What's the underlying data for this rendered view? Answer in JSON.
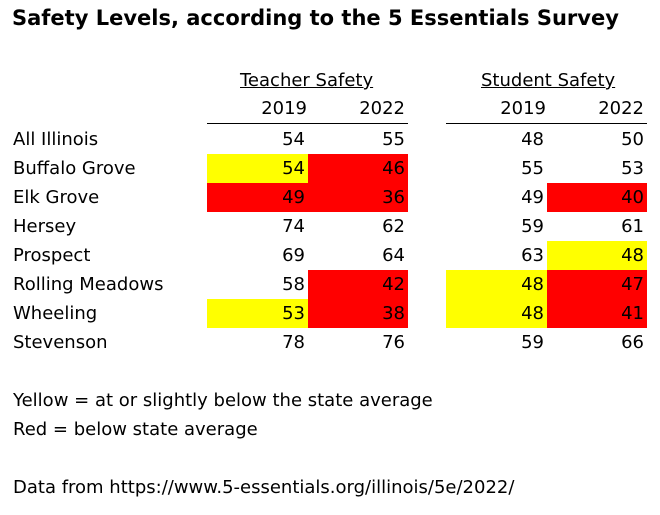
{
  "chart_data": {
    "type": "table",
    "title": "Safety Levels, according to the 5 Essentials Survey",
    "groups": [
      {
        "name": "Teacher Safety",
        "years": [
          "2019",
          "2022"
        ]
      },
      {
        "name": "Student Safety",
        "years": [
          "2019",
          "2022"
        ]
      }
    ],
    "colors": {
      "yellow": "#FFFF00",
      "red": "#FF0000"
    },
    "rows": [
      {
        "label": "All Illinois",
        "teacher": [
          54,
          55
        ],
        "student": [
          48,
          50
        ],
        "teacher_hl": [
          "",
          ""
        ],
        "student_hl": [
          "",
          ""
        ]
      },
      {
        "label": "Buffalo Grove",
        "teacher": [
          54,
          46
        ],
        "student": [
          55,
          53
        ],
        "teacher_hl": [
          "yellow",
          "red"
        ],
        "student_hl": [
          "",
          ""
        ]
      },
      {
        "label": "Elk Grove",
        "teacher": [
          49,
          36
        ],
        "student": [
          49,
          40
        ],
        "teacher_hl": [
          "red",
          "red"
        ],
        "student_hl": [
          "",
          "red"
        ]
      },
      {
        "label": "Hersey",
        "teacher": [
          74,
          62
        ],
        "student": [
          59,
          61
        ],
        "teacher_hl": [
          "",
          ""
        ],
        "student_hl": [
          "",
          ""
        ]
      },
      {
        "label": "Prospect",
        "teacher": [
          69,
          64
        ],
        "student": [
          63,
          48
        ],
        "teacher_hl": [
          "",
          ""
        ],
        "student_hl": [
          "",
          "yellow"
        ]
      },
      {
        "label": "Rolling Meadows",
        "teacher": [
          58,
          42
        ],
        "student": [
          48,
          47
        ],
        "teacher_hl": [
          "",
          "red"
        ],
        "student_hl": [
          "yellow",
          "red"
        ]
      },
      {
        "label": "Wheeling",
        "teacher": [
          53,
          38
        ],
        "student": [
          48,
          41
        ],
        "teacher_hl": [
          "yellow",
          "red"
        ],
        "student_hl": [
          "yellow",
          "red"
        ]
      },
      {
        "label": "Stevenson",
        "teacher": [
          78,
          76
        ],
        "student": [
          59,
          66
        ],
        "teacher_hl": [
          "",
          ""
        ],
        "student_hl": [
          "",
          ""
        ]
      }
    ]
  },
  "legend": {
    "yellow_note": "Yellow = at or slightly below the state average",
    "red_note": "Red = below state average"
  },
  "source": "Data from https://www.5-essentials.org/illinois/5e/2022/"
}
